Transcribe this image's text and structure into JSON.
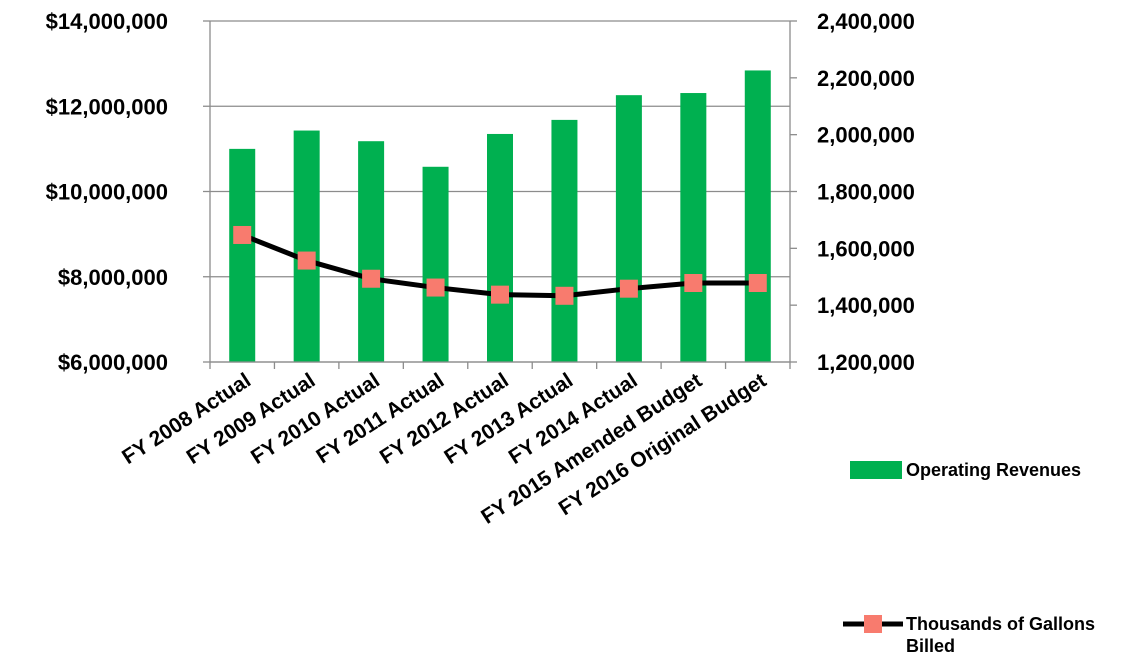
{
  "chart_data": {
    "type": "bar+line",
    "categories": [
      "FY 2008 Actual",
      "FY 2009 Actual",
      "FY 2010 Actual",
      "FY 2011 Actual",
      "FY 2012 Actual",
      "FY 2013 Actual",
      "FY 2014 Actual",
      "FY 2015 Amended Budget",
      "FY 2016 Original Budget"
    ],
    "series": [
      {
        "name": "Operating Revenues",
        "type": "bar",
        "axis": "left",
        "color": "#00b050",
        "values": [
          11000000,
          11430000,
          11180000,
          10580000,
          11350000,
          11680000,
          12260000,
          12310000,
          12840000
        ]
      },
      {
        "name": "Thousands of Gallons Billed",
        "type": "line",
        "axis": "right",
        "color": "#000000",
        "marker_color": "#f87b6e",
        "values": [
          1647000,
          1557000,
          1493000,
          1462000,
          1437000,
          1433000,
          1458000,
          1478000,
          1478000
        ]
      }
    ],
    "y_left": {
      "min": 6000000,
      "max": 14000000,
      "ticks": [
        "$6,000,000",
        "$8,000,000",
        "$10,000,000",
        "$12,000,000",
        "$14,000,000"
      ]
    },
    "y_right": {
      "min": 1200000,
      "max": 2400000,
      "ticks": [
        "1,200,000",
        "1,400,000",
        "1,600,000",
        "1,800,000",
        "2,000,000",
        "2,200,000",
        "2,400,000"
      ]
    },
    "grid": true,
    "legend_position": "right"
  },
  "legend": {
    "bars_label": "Operating Revenues",
    "line_label": "Thousands of Gallons Billed"
  }
}
